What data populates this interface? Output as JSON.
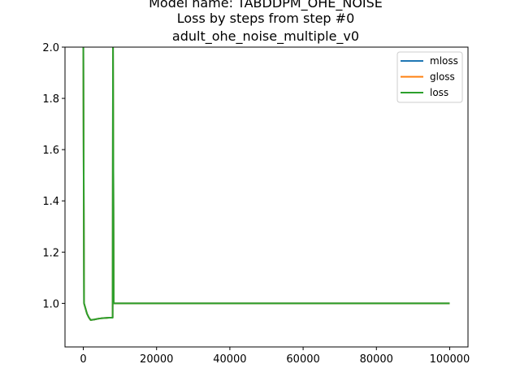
{
  "chart_data": {
    "type": "line",
    "title_lines": [
      "Model name: TABDDPM_OHE_NOISE",
      "Loss by steps from step #0",
      "adult_ohe_noise_multiple_v0"
    ],
    "xlabel": "",
    "ylabel": "",
    "xlim": [
      -5000,
      105000
    ],
    "ylim": [
      0.83,
      2.0
    ],
    "xticks": [
      0,
      20000,
      40000,
      60000,
      80000,
      100000
    ],
    "xtick_labels": [
      "0",
      "20000",
      "40000",
      "60000",
      "80000",
      "100000"
    ],
    "yticks": [
      1.0,
      1.2,
      1.4,
      1.6,
      1.8,
      2.0
    ],
    "ytick_labels": [
      "1.0",
      "1.2",
      "1.4",
      "1.6",
      "1.8",
      "2.0"
    ],
    "grid": false,
    "legend_position": "top-right",
    "series": [
      {
        "name": "mloss",
        "color": "#1f77b4",
        "x": [
          0,
          200,
          500,
          1000,
          1500,
          2000,
          3000,
          4000,
          5000,
          6000,
          7000,
          8000,
          8100,
          8300,
          10000,
          20000,
          30000,
          40000,
          50000,
          60000,
          70000,
          80000,
          90000,
          100000
        ],
        "y": [
          2.0,
          1.0,
          0.985,
          0.96,
          0.945,
          0.935,
          0.937,
          0.94,
          0.942,
          0.943,
          0.944,
          0.944,
          2.0,
          1.0,
          1.0,
          1.0,
          1.0,
          1.0,
          1.0,
          1.0,
          1.0,
          1.0,
          1.0,
          1.0
        ]
      },
      {
        "name": "gloss",
        "color": "#ff7f0e",
        "x": [
          0,
          200,
          500,
          1000,
          1500,
          2000,
          3000,
          4000,
          5000,
          6000,
          7000,
          8000,
          8100,
          8300,
          10000,
          20000,
          30000,
          40000,
          50000,
          60000,
          70000,
          80000,
          90000,
          100000
        ],
        "y": [
          2.0,
          1.0,
          0.985,
          0.96,
          0.945,
          0.935,
          0.937,
          0.94,
          0.942,
          0.943,
          0.944,
          0.944,
          2.0,
          1.0,
          1.0,
          1.0,
          1.0,
          1.0,
          1.0,
          1.0,
          1.0,
          1.0,
          1.0,
          1.0
        ]
      },
      {
        "name": "loss",
        "color": "#2ca02c",
        "x": [
          0,
          200,
          500,
          1000,
          1500,
          2000,
          3000,
          4000,
          5000,
          6000,
          7000,
          8000,
          8100,
          8300,
          10000,
          20000,
          30000,
          40000,
          50000,
          60000,
          70000,
          80000,
          90000,
          100000
        ],
        "y": [
          2.0,
          1.0,
          0.985,
          0.96,
          0.945,
          0.935,
          0.937,
          0.94,
          0.942,
          0.943,
          0.944,
          0.944,
          2.0,
          1.0,
          1.0,
          1.0,
          1.0,
          1.0,
          1.0,
          1.0,
          1.0,
          1.0,
          1.0,
          1.0
        ]
      }
    ]
  }
}
